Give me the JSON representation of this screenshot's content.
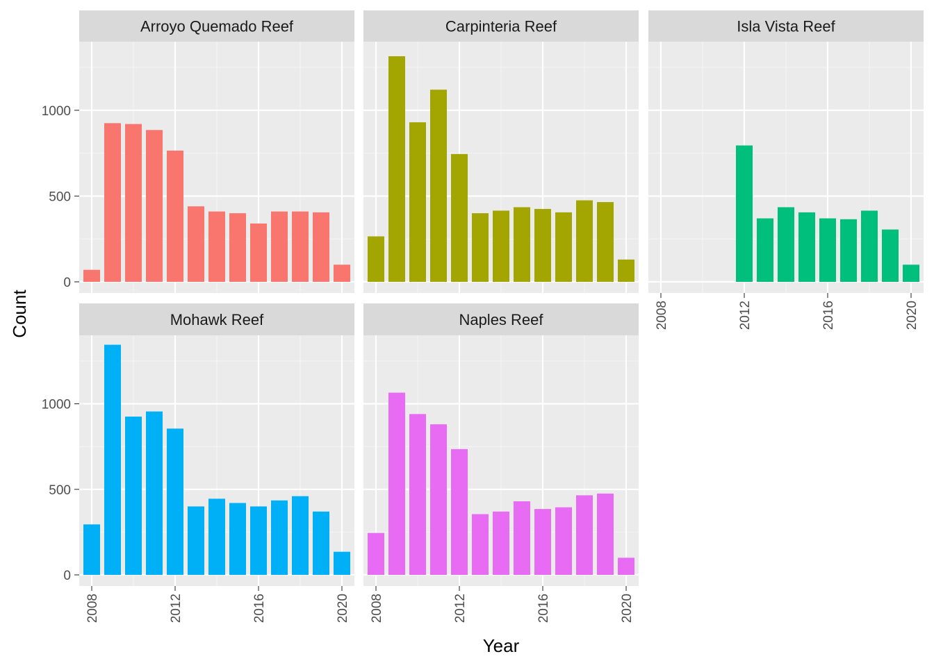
{
  "chart_data": {
    "type": "bar",
    "xlabel": "Year",
    "ylabel": "Count",
    "x_ticks": [
      2008,
      2012,
      2016,
      2020
    ],
    "y_ticks": [
      0,
      500,
      1000
    ],
    "ylim": [
      0,
      1400
    ],
    "xlim": [
      2007.4,
      2020.6
    ],
    "grid": true,
    "legend": "none",
    "panels": [
      {
        "title": "Arroyo Quemado Reef",
        "color": "#F8766D",
        "years": [
          2008,
          2009,
          2010,
          2011,
          2012,
          2013,
          2014,
          2015,
          2016,
          2017,
          2018,
          2019,
          2020
        ],
        "values": [
          70,
          925,
          920,
          885,
          765,
          440,
          410,
          400,
          340,
          410,
          410,
          405,
          100
        ]
      },
      {
        "title": "Carpinteria Reef",
        "color": "#A3A500",
        "years": [
          2008,
          2009,
          2010,
          2011,
          2012,
          2013,
          2014,
          2015,
          2016,
          2017,
          2018,
          2019,
          2020
        ],
        "values": [
          265,
          1315,
          930,
          1120,
          745,
          400,
          415,
          435,
          425,
          405,
          475,
          465,
          130
        ]
      },
      {
        "title": "Isla Vista Reef",
        "color": "#00BF7D",
        "years": [
          2012,
          2013,
          2014,
          2015,
          2016,
          2017,
          2018,
          2019,
          2020
        ],
        "values": [
          795,
          370,
          435,
          405,
          370,
          365,
          415,
          305,
          100
        ]
      },
      {
        "title": "Mohawk Reef",
        "color": "#00B0F6",
        "years": [
          2008,
          2009,
          2010,
          2011,
          2012,
          2013,
          2014,
          2015,
          2016,
          2017,
          2018,
          2019,
          2020
        ],
        "values": [
          295,
          1345,
          925,
          955,
          855,
          400,
          445,
          420,
          400,
          435,
          460,
          370,
          135
        ]
      },
      {
        "title": "Naples Reef",
        "color": "#E76BF3",
        "years": [
          2008,
          2009,
          2010,
          2011,
          2012,
          2013,
          2014,
          2015,
          2016,
          2017,
          2018,
          2019,
          2020
        ],
        "values": [
          245,
          1065,
          940,
          880,
          735,
          355,
          370,
          430,
          385,
          395,
          465,
          475,
          100
        ]
      }
    ]
  }
}
